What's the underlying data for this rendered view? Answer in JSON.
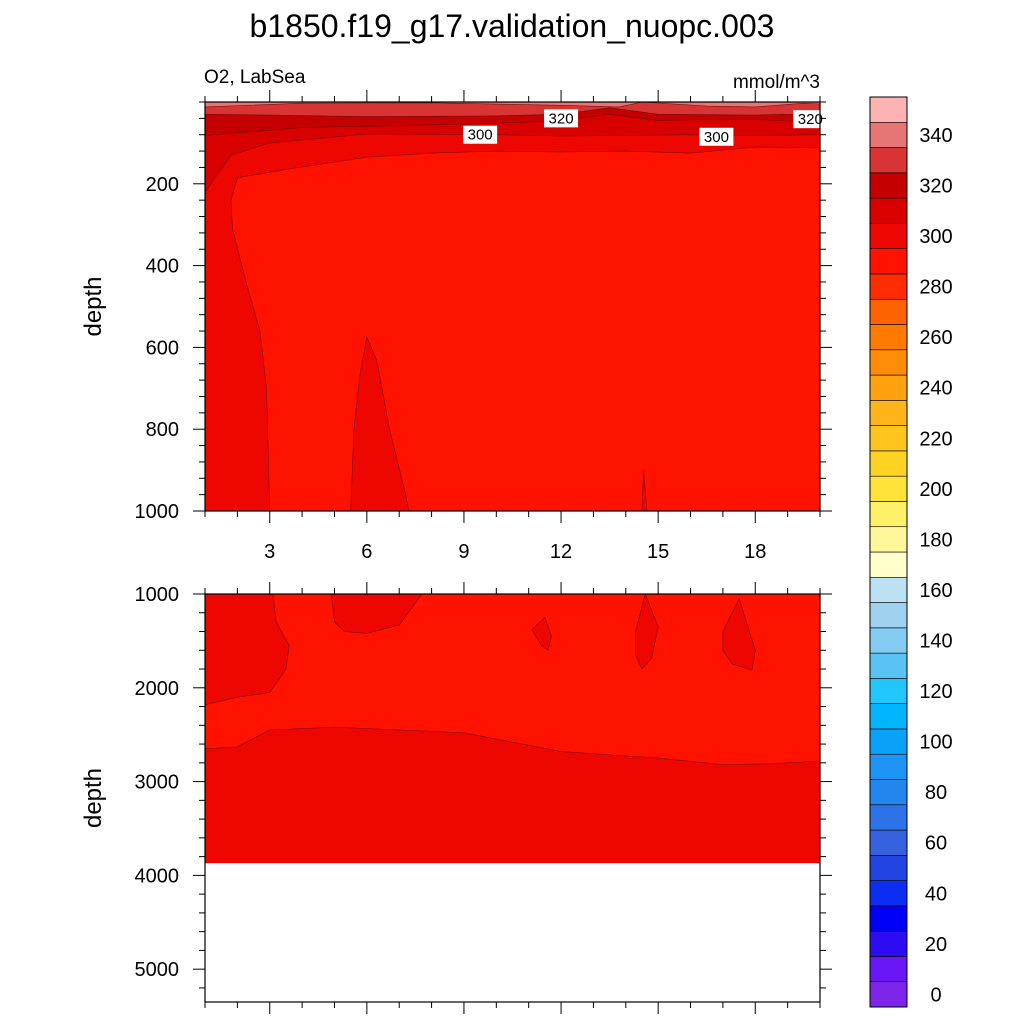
{
  "title": "b1850.f19_g17.validation_nuopc.003",
  "left_label": "O2, LabSea",
  "right_label": "mmol/m^3",
  "chart_data": [
    {
      "type": "heatmap",
      "panel": "upper",
      "ylabel": "depth",
      "xlabel": "",
      "xlim": [
        1,
        20
      ],
      "ylim": [
        0,
        1000
      ],
      "y_inverted": true,
      "x_ticks": [
        3,
        6,
        9,
        12,
        15,
        18
      ],
      "x_tick_labels": [
        "3",
        "6",
        "9",
        "12",
        "15",
        "18"
      ],
      "y_ticks": [
        200,
        400,
        600,
        800,
        1000
      ],
      "y_tick_labels": [
        "200",
        "400",
        "600",
        "800",
        "1000"
      ],
      "contour_labels": [
        {
          "text": "320",
          "x": 12.0,
          "y": 40
        },
        {
          "text": "300",
          "x": 9.5,
          "y": 80
        },
        {
          "text": "300",
          "x": 16.8,
          "y": 85
        },
        {
          "text": "320",
          "x": 19.7,
          "y": 42
        }
      ],
      "regions": [
        {
          "value": 290,
          "points": [
            [
              1,
              0
            ],
            [
              20,
              0
            ],
            [
              20,
              1000
            ],
            [
              1,
              1000
            ]
          ]
        },
        {
          "value": 300,
          "points": [
            [
              1,
              0
            ],
            [
              20,
              0
            ],
            [
              20,
              112
            ],
            [
              18,
              110
            ],
            [
              16,
              125
            ],
            [
              14,
              120
            ],
            [
              12,
              122
            ],
            [
              10,
              120
            ],
            [
              8,
              125
            ],
            [
              6,
              135
            ],
            [
              3.5,
              165
            ],
            [
              2,
              185
            ],
            [
              1.8,
              240
            ],
            [
              1.85,
              310
            ],
            [
              2.3,
              450
            ],
            [
              2.7,
              560
            ],
            [
              2.9,
              700
            ],
            [
              2.95,
              850
            ],
            [
              3.0,
              1000
            ],
            [
              1,
              1000
            ]
          ]
        },
        {
          "value": 300,
          "points": [
            [
              5.5,
              1000
            ],
            [
              5.6,
              800
            ],
            [
              5.8,
              660
            ],
            [
              6.0,
              575
            ],
            [
              6.3,
              630
            ],
            [
              6.7,
              800
            ],
            [
              7.2,
              960
            ],
            [
              7.3,
              1000
            ]
          ]
        },
        {
          "value": 300,
          "points": [
            [
              14.5,
              1000
            ],
            [
              14.55,
              900
            ],
            [
              14.65,
              1000
            ]
          ]
        },
        {
          "value": 310,
          "points": [
            [
              1,
              0
            ],
            [
              20,
              0
            ],
            [
              20,
              80
            ],
            [
              18,
              82
            ],
            [
              16,
              80
            ],
            [
              14,
              82
            ],
            [
              12,
              83
            ],
            [
              10,
              80
            ],
            [
              6,
              78
            ],
            [
              3,
              100
            ],
            [
              1.8,
              130
            ],
            [
              1,
              220
            ]
          ]
        },
        {
          "value": 320,
          "points": [
            [
              1,
              0
            ],
            [
              20,
              0
            ],
            [
              20,
              52
            ],
            [
              18.5,
              44
            ],
            [
              17,
              42
            ],
            [
              15,
              45
            ],
            [
              13.5,
              30
            ],
            [
              12,
              45
            ],
            [
              10,
              52
            ],
            [
              7,
              58
            ],
            [
              4,
              62
            ],
            [
              1,
              82
            ]
          ]
        },
        {
          "value": 330,
          "points": [
            [
              1,
              0
            ],
            [
              20,
              0
            ],
            [
              20,
              28
            ],
            [
              18,
              32
            ],
            [
              15,
              30
            ],
            [
              13.5,
              14
            ],
            [
              12,
              30
            ],
            [
              10,
              34
            ],
            [
              6,
              36
            ],
            [
              3,
              32
            ],
            [
              1,
              30
            ]
          ]
        },
        {
          "value": 340,
          "points": [
            [
              1,
              0
            ],
            [
              20,
              0
            ],
            [
              20,
              5
            ],
            [
              19.5,
              3
            ],
            [
              18,
              12
            ],
            [
              16.5,
              10
            ],
            [
              14.5,
              0
            ],
            [
              13.8,
              12
            ],
            [
              12,
              8
            ],
            [
              8,
              2
            ],
            [
              4,
              3
            ],
            [
              1,
              12
            ]
          ]
        }
      ]
    },
    {
      "type": "heatmap",
      "panel": "lower",
      "ylabel": "depth",
      "xlabel": "",
      "xlim": [
        1,
        20
      ],
      "ylim": [
        1000,
        5000
      ],
      "y_axis_extent": [
        1000,
        5350
      ],
      "y_inverted": true,
      "data_bottom": 3870,
      "x_ticks": [
        3,
        6,
        9,
        12,
        15,
        18
      ],
      "x_tick_labels": [],
      "y_ticks": [
        1000,
        2000,
        3000,
        4000,
        5000
      ],
      "y_tick_labels": [
        "1000",
        "2000",
        "3000",
        "4000",
        "5000"
      ],
      "contour_labels": [],
      "regions": [
        {
          "value": 300,
          "points": [
            [
              1,
              1000
            ],
            [
              20,
              1000
            ],
            [
              20,
              3870
            ],
            [
              1,
              3870
            ]
          ]
        },
        {
          "value": 290,
          "points": [
            [
              1,
              2650
            ],
            [
              2,
              2630
            ],
            [
              3,
              2450
            ],
            [
              5,
              2420
            ],
            [
              9,
              2480
            ],
            [
              12,
              2680
            ],
            [
              15,
              2750
            ],
            [
              17,
              2820
            ],
            [
              18.5,
              2810
            ],
            [
              20,
              2780
            ],
            [
              20,
              1000
            ],
            [
              7.7,
              1000
            ],
            [
              7,
              1330
            ],
            [
              6,
              1420
            ],
            [
              5.3,
              1400
            ],
            [
              5,
              1300
            ],
            [
              4.9,
              1000
            ],
            [
              3.1,
              1000
            ],
            [
              3.2,
              1300
            ],
            [
              3.6,
              1550
            ],
            [
              3.5,
              1800
            ],
            [
              3,
              2050
            ],
            [
              2,
              2100
            ],
            [
              1,
              2180
            ]
          ]
        },
        {
          "value": 300,
          "points": [
            [
              11.1,
              1380
            ],
            [
              11.5,
              1250
            ],
            [
              11.7,
              1450
            ],
            [
              11.6,
              1600
            ],
            [
              11.4,
              1550
            ]
          ]
        },
        {
          "value": 300,
          "points": [
            [
              14.3,
              1400
            ],
            [
              14.6,
              1000
            ],
            [
              15.0,
              1350
            ],
            [
              14.8,
              1680
            ],
            [
              14.5,
              1800
            ],
            [
              14.3,
              1650
            ]
          ]
        },
        {
          "value": 300,
          "points": [
            [
              17.0,
              1400
            ],
            [
              17.5,
              1050
            ],
            [
              18.0,
              1600
            ],
            [
              17.9,
              1810
            ],
            [
              17.3,
              1750
            ],
            [
              17.0,
              1600
            ]
          ]
        }
      ]
    },
    {
      "type": "colorbar",
      "levels": [
        0,
        10,
        20,
        30,
        40,
        50,
        60,
        70,
        80,
        90,
        100,
        110,
        120,
        130,
        140,
        150,
        160,
        170,
        180,
        190,
        200,
        210,
        220,
        230,
        240,
        250,
        260,
        270,
        280,
        290,
        300,
        310,
        320,
        330,
        340,
        350
      ],
      "tick_labels": [
        "0",
        "20",
        "40",
        "60",
        "80",
        "100",
        "120",
        "140",
        "160",
        "180",
        "200",
        "220",
        "240",
        "260",
        "280",
        "300",
        "320",
        "340"
      ],
      "tick_values": [
        0,
        20,
        40,
        60,
        80,
        100,
        120,
        140,
        160,
        180,
        200,
        220,
        240,
        260,
        280,
        300,
        320,
        340
      ],
      "colors": [
        "#7c24ea",
        "#6a16f6",
        "#2d0cf4",
        "#0000f9",
        "#0c2ef2",
        "#2244e2",
        "#3662df",
        "#2d72e8",
        "#2186ee",
        "#1d93f5",
        "#0aa1f9",
        "#00b5ff",
        "#20c6fc",
        "#5ac3f5",
        "#83cbf1",
        "#9fd2f0",
        "#bbe1f2",
        "#ffffcc",
        "#fff79a",
        "#fff06a",
        "#ffe339",
        "#ffd324",
        "#ffc51e",
        "#ffb51a",
        "#ffa210",
        "#ff8c06",
        "#ff7a00",
        "#ff6200",
        "#ff2d00",
        "#ff1200",
        "#ee0600",
        "#d90000",
        "#c40000",
        "#d83434",
        "#e87575",
        "#fdb3b3"
      ]
    }
  ]
}
